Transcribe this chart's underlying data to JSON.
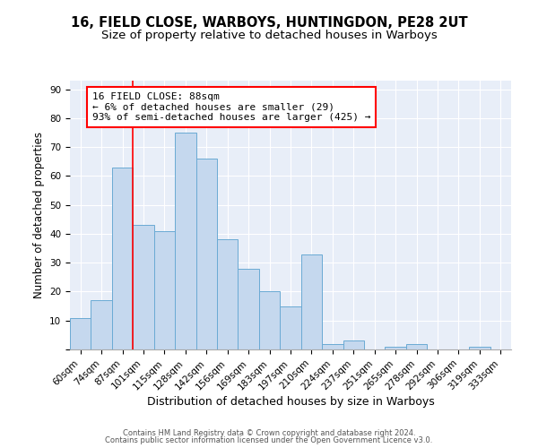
{
  "title1": "16, FIELD CLOSE, WARBOYS, HUNTINGDON, PE28 2UT",
  "title2": "Size of property relative to detached houses in Warboys",
  "xlabel": "Distribution of detached houses by size in Warboys",
  "ylabel": "Number of detached properties",
  "categories": [
    "60sqm",
    "74sqm",
    "87sqm",
    "101sqm",
    "115sqm",
    "128sqm",
    "142sqm",
    "156sqm",
    "169sqm",
    "183sqm",
    "197sqm",
    "210sqm",
    "224sqm",
    "237sqm",
    "251sqm",
    "265sqm",
    "278sqm",
    "292sqm",
    "306sqm",
    "319sqm",
    "333sqm"
  ],
  "values": [
    11,
    17,
    63,
    43,
    41,
    75,
    66,
    38,
    28,
    20,
    15,
    33,
    2,
    3,
    0,
    1,
    2,
    0,
    0,
    1,
    0
  ],
  "bar_color": "#c5d8ee",
  "bar_edge_color": "#6aaad4",
  "red_line_index": 2,
  "annotation_line1": "16 FIELD CLOSE: 88sqm",
  "annotation_line2": "← 6% of detached houses are smaller (29)",
  "annotation_line3": "93% of semi-detached houses are larger (425) →",
  "annotation_box_color": "white",
  "annotation_box_edge_color": "red",
  "ylim": [
    0,
    93
  ],
  "yticks": [
    0,
    10,
    20,
    30,
    40,
    50,
    60,
    70,
    80,
    90
  ],
  "grid_color": "#ffffff",
  "background_color": "#e8eef8",
  "plot_bg_color": "#dce6f5",
  "footer_line1": "Contains HM Land Registry data © Crown copyright and database right 2024.",
  "footer_line2": "Contains public sector information licensed under the Open Government Licence v3.0.",
  "title1_fontsize": 10.5,
  "title2_fontsize": 9.5,
  "xlabel_fontsize": 9,
  "ylabel_fontsize": 8.5,
  "tick_fontsize": 7.5,
  "annotation_fontsize": 8,
  "footer_fontsize": 6
}
